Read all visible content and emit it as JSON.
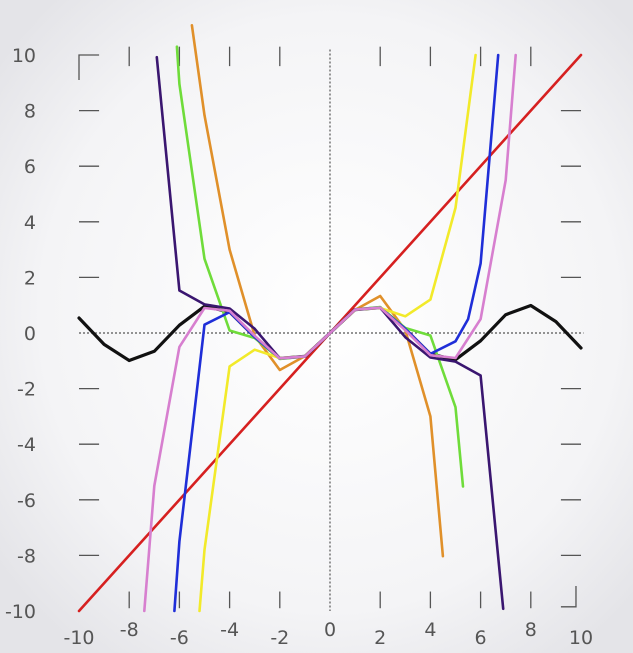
{
  "chart_data": {
    "type": "line",
    "title": "",
    "xlabel": "",
    "ylabel": "",
    "xlim": [
      -10,
      10
    ],
    "ylim": [
      -10,
      10
    ],
    "grid": false,
    "legend": "none",
    "x_ticks": [
      "-10",
      "-8",
      "-6",
      "-4",
      "-2",
      "0",
      "2",
      "4",
      "6",
      "8",
      "10"
    ],
    "y_ticks": [
      "10",
      "8",
      "6",
      "4",
      "2",
      "0",
      "-2",
      "-4",
      "-6",
      "-8",
      "-10"
    ],
    "series": [
      {
        "color": "#d62020",
        "x": [
          -10,
          10
        ],
        "y": [
          -10,
          10
        ]
      },
      {
        "color": "#111111",
        "x": [
          -10,
          -9,
          -8,
          -7,
          -6,
          -5,
          -4,
          -3,
          -2,
          -1,
          0,
          1,
          2,
          3,
          4,
          5,
          6,
          7,
          8,
          9,
          10
        ],
        "y": [
          0.54,
          -0.41,
          -0.99,
          -0.66,
          0.28,
          0.96,
          0.76,
          -0.14,
          -0.91,
          -0.84,
          0,
          0.84,
          0.91,
          0.14,
          -0.76,
          -0.96,
          -0.28,
          0.66,
          0.99,
          0.41,
          -0.54
        ]
      },
      {
        "color": "#e0902a",
        "x": [
          -5.5,
          -5,
          -4,
          -3,
          -2,
          -1,
          0,
          1,
          2,
          3,
          4,
          4.5
        ],
        "y": [
          11.07,
          7.83,
          3.0,
          -0.1,
          -1.33,
          -0.83,
          0,
          0.83,
          1.33,
          0.1,
          -3.0,
          -8.03
        ]
      },
      {
        "color": "#6fdc3a",
        "x": [
          -6.1,
          -6,
          -5,
          -4,
          -3,
          -2,
          -1,
          0,
          1,
          2,
          3,
          4,
          5,
          5.3
        ],
        "y": [
          10.3,
          8.96,
          2.67,
          0.09,
          -0.18,
          -0.93,
          -0.84,
          0,
          0.84,
          0.93,
          0.18,
          -0.09,
          -2.67,
          -5.52
        ]
      },
      {
        "color": "#3a1670",
        "x": [
          -6.9,
          -6,
          -5,
          -4,
          -3,
          -2,
          -1,
          0,
          1,
          2,
          3,
          4,
          5,
          6,
          6.9
        ],
        "y": [
          9.92,
          1.53,
          1.03,
          0.88,
          0.15,
          -0.91,
          -0.84,
          0,
          0.84,
          0.91,
          -0.15,
          -0.88,
          -1.03,
          -1.53,
          -9.92
        ]
      },
      {
        "color": "#f2ea2a",
        "x": [
          -5.2,
          -5,
          -4,
          -3,
          -2,
          -1,
          0,
          1,
          2,
          3,
          4,
          5,
          5.8
        ],
        "y": [
          -10,
          -7.8,
          -1.2,
          -0.6,
          -0.9,
          -0.84,
          0,
          0.84,
          0.9,
          0.6,
          1.2,
          4.5,
          10
        ]
      },
      {
        "color": "#1f2ed8",
        "x": [
          -6.2,
          -6,
          -5,
          -4,
          -3,
          -2,
          -1,
          0,
          1,
          2,
          3,
          4,
          5,
          5.5,
          6,
          6.7
        ],
        "y": [
          -10,
          -7.5,
          0.3,
          0.75,
          -0.15,
          -0.91,
          -0.84,
          0,
          0.84,
          0.91,
          0.15,
          -0.75,
          -0.3,
          0.5,
          2.5,
          10
        ]
      },
      {
        "color": "#d77fcf",
        "x": [
          -7.4,
          -7,
          -6,
          -5,
          -4,
          -3,
          -2,
          -1,
          0,
          1,
          2,
          3,
          4,
          5,
          6,
          7,
          7.4
        ],
        "y": [
          -10,
          -5.5,
          -0.5,
          0.9,
          0.8,
          -0.1,
          -0.91,
          -0.84,
          0,
          0.84,
          0.91,
          0.1,
          -0.8,
          -0.9,
          0.5,
          5.5,
          10
        ]
      }
    ]
  }
}
